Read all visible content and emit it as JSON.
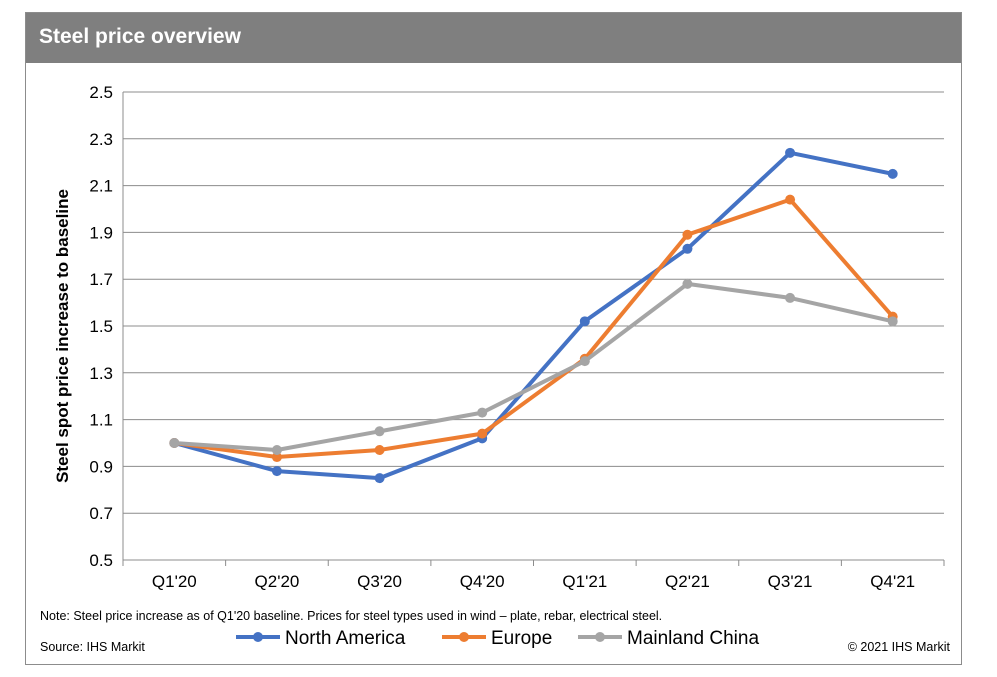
{
  "header": {
    "title": "Steel price overview"
  },
  "footer": {
    "note": "Note: Steel price increase as of Q1'20 baseline. Prices for steel types used in wind – plate, rebar, electrical steel.",
    "source": "Source: IHS Markit",
    "copyright": "© 2021 IHS Markit"
  },
  "chart_data": {
    "type": "line",
    "title": "Steel price overview",
    "xlabel": "",
    "ylabel": "Steel spot price increase to baseline",
    "categories": [
      "Q1'20",
      "Q2'20",
      "Q3'20",
      "Q4'20",
      "Q1'21",
      "Q2'21",
      "Q3'21",
      "Q4'21"
    ],
    "ylim": [
      0.5,
      2.5
    ],
    "yticks": [
      "0.5",
      "0.7",
      "0.9",
      "1.1",
      "1.3",
      "1.5",
      "1.7",
      "1.9",
      "2.1",
      "2.3",
      "2.5"
    ],
    "grid": true,
    "legend_position": "bottom",
    "series": [
      {
        "name": "North America",
        "color": "#4472c4",
        "values": [
          1.0,
          0.88,
          0.85,
          1.02,
          1.52,
          1.83,
          2.24,
          2.15
        ]
      },
      {
        "name": "Europe",
        "color": "#ed7d31",
        "values": [
          1.0,
          0.94,
          0.97,
          1.04,
          1.36,
          1.89,
          2.04,
          1.54
        ]
      },
      {
        "name": "Mainland China",
        "color": "#a5a5a5",
        "values": [
          1.0,
          0.97,
          1.05,
          1.13,
          1.35,
          1.68,
          1.62,
          1.52
        ]
      }
    ]
  }
}
